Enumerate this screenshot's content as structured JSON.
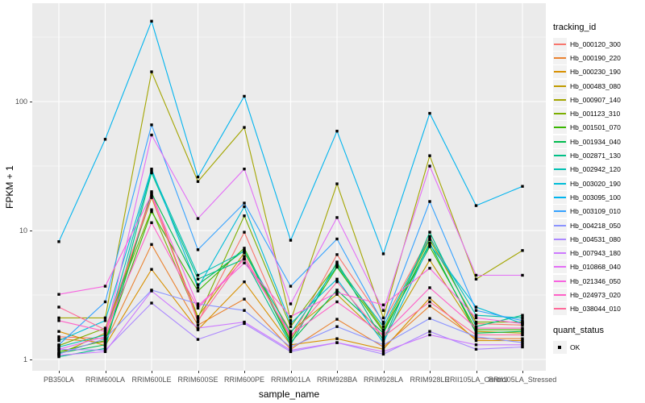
{
  "figure": {
    "y_axis_title": "FPKM + 1",
    "x_axis_title": "sample_name",
    "legend": {
      "tracking_title": "tracking_id",
      "quant_title": "quant_status",
      "quant_items": [
        "OK"
      ]
    },
    "colors": {
      "panel_background": "#EBEBEB",
      "gridline": "#FFFFFF",
      "tick_label": "#4D4D4D",
      "axis_title": "#000000",
      "legend_key_background": "#F2F2F2",
      "point": "#000000"
    }
  },
  "chart_data": {
    "type": "line",
    "title": "",
    "xlabel": "sample_name",
    "ylabel": "FPKM + 1",
    "y_scale": "log10",
    "y_ticks": [
      1,
      10,
      100
    ],
    "y_minor_ticks": [
      3.162,
      31.62,
      316.2
    ],
    "ylim": [
      1,
      560
    ],
    "grid": true,
    "legend_position": "right",
    "point_marker": "small black square at every data point (quant_status = OK)",
    "categories": [
      "PB350LA",
      "RRIM600LA",
      "RRIM600LE",
      "RRIM600SE",
      "RRIM600PE",
      "RRIM901LA",
      "RRIM928BA",
      "RRIM928LA",
      "RRIM928LE",
      "RRII105LA_Control",
      "RRII105LA_Stressed"
    ],
    "series": [
      {
        "name": "Hb_000120_300",
        "color": "#F8766D",
        "values": [
          1.5,
          1.45,
          20,
          1.95,
          9.7,
          1.45,
          6.5,
          1.95,
          9.0,
          1.9,
          1.85
        ]
      },
      {
        "name": "Hb_000190_220",
        "color": "#EA8331",
        "values": [
          1.45,
          1.35,
          7.8,
          1.85,
          2.94,
          1.2,
          2.05,
          1.25,
          2.6,
          1.45,
          1.45
        ]
      },
      {
        "name": "Hb_000230_190",
        "color": "#D89000",
        "values": [
          1.65,
          1.28,
          5.0,
          1.7,
          4.0,
          1.3,
          1.45,
          1.2,
          3.0,
          1.4,
          1.4
        ]
      },
      {
        "name": "Hb_000483_080",
        "color": "#C09B00",
        "values": [
          1.1,
          1.6,
          18,
          2.15,
          6.7,
          1.65,
          3.2,
          1.45,
          5.9,
          1.65,
          1.6
        ]
      },
      {
        "name": "Hb_000907_140",
        "color": "#A3A500",
        "values": [
          2.1,
          2.1,
          170,
          24,
          63,
          2.0,
          23,
          2.1,
          38,
          4.2,
          7.0
        ]
      },
      {
        "name": "Hb_001123_310",
        "color": "#7CAE00",
        "values": [
          1.28,
          1.75,
          14.5,
          2.1,
          13,
          1.8,
          5.5,
          1.7,
          8.5,
          1.95,
          1.95
        ]
      },
      {
        "name": "Hb_001501_070",
        "color": "#39B600",
        "values": [
          1.15,
          1.4,
          14,
          3.4,
          7.3,
          1.4,
          5.2,
          1.65,
          7.5,
          1.7,
          1.7
        ]
      },
      {
        "name": "Hb_001934_040",
        "color": "#00BB4E",
        "values": [
          1.12,
          1.3,
          19.5,
          3.8,
          7.0,
          1.35,
          3.45,
          1.6,
          8.0,
          1.6,
          1.65
        ]
      },
      {
        "name": "Hb_002871_130",
        "color": "#00C087",
        "values": [
          1.05,
          1.22,
          28,
          4.2,
          6.0,
          1.3,
          5.7,
          1.4,
          9.7,
          1.8,
          2.2
        ]
      },
      {
        "name": "Hb_002942_120",
        "color": "#00C0B2",
        "values": [
          1.25,
          1.55,
          29,
          4.5,
          6.9,
          1.6,
          5.3,
          1.8,
          8.8,
          2.2,
          2.1
        ]
      },
      {
        "name": "Hb_003020_190",
        "color": "#00BCD8",
        "values": [
          1.4,
          2.0,
          30,
          3.6,
          15.3,
          1.9,
          4.2,
          1.35,
          7.8,
          2.55,
          1.9
        ]
      },
      {
        "name": "Hb_003095_100",
        "color": "#00B4EF",
        "values": [
          8.2,
          51,
          420,
          26,
          110,
          8.4,
          59,
          6.6,
          81,
          15.6,
          22
        ]
      },
      {
        "name": "Hb_003109_010",
        "color": "#35A2FF",
        "values": [
          1.3,
          2.8,
          66,
          7.1,
          16.3,
          3.7,
          8.6,
          1.9,
          16.8,
          2.4,
          2.0
        ]
      },
      {
        "name": "Hb_004218_050",
        "color": "#8B93FF",
        "values": [
          1.1,
          1.45,
          3.45,
          2.7,
          2.4,
          1.25,
          1.8,
          1.3,
          2.08,
          1.5,
          1.35
        ]
      },
      {
        "name": "Hb_004531_080",
        "color": "#AC88FF",
        "values": [
          1.2,
          1.18,
          2.74,
          1.43,
          1.9,
          1.15,
          1.35,
          1.1,
          1.65,
          1.2,
          1.25
        ]
      },
      {
        "name": "Hb_007943_180",
        "color": "#CD79FF",
        "values": [
          1.08,
          1.15,
          3.4,
          1.75,
          1.95,
          1.18,
          1.35,
          1.15,
          1.55,
          1.3,
          1.3
        ]
      },
      {
        "name": "Hb_010868_040",
        "color": "#E36EF6",
        "values": [
          1.2,
          1.5,
          55,
          12.4,
          30,
          2.7,
          12.6,
          2.4,
          31.6,
          4.5,
          4.5
        ]
      },
      {
        "name": "Hb_021346_050",
        "color": "#F863E0",
        "values": [
          3.2,
          3.7,
          19,
          2.6,
          5.6,
          2.15,
          3.3,
          2.65,
          5.1,
          2.1,
          1.9
        ]
      },
      {
        "name": "Hb_024973_020",
        "color": "#FF61C7",
        "values": [
          2.0,
          1.65,
          11.5,
          2.5,
          6.0,
          1.55,
          2.8,
          1.55,
          3.6,
          1.75,
          1.75
        ]
      },
      {
        "name": "Hb_038044_010",
        "color": "#FF6A9A",
        "values": [
          2.55,
          1.7,
          18.5,
          2.0,
          6.3,
          1.5,
          4.0,
          1.5,
          2.8,
          1.55,
          1.55
        ]
      }
    ]
  }
}
